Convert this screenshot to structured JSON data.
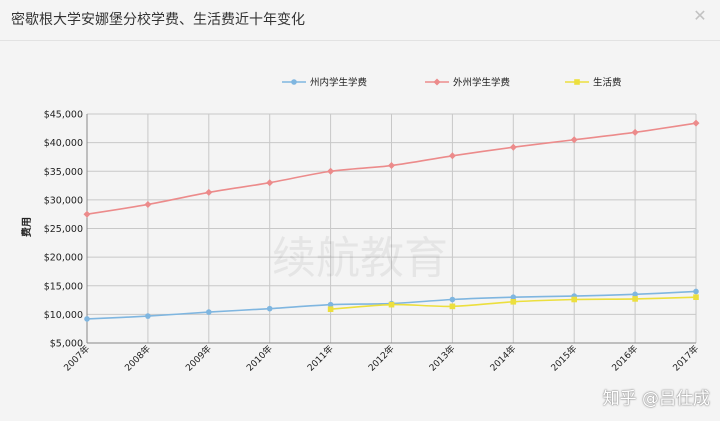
{
  "window": {
    "title": "密歇根大学安娜堡分校学费、生活费近十年变化",
    "close_glyph": "✕"
  },
  "watermark": {
    "center_text": "续航教育",
    "corner_text": "知乎 @吕仕成"
  },
  "colors": {
    "background": "#f4f4f4",
    "grid": "#c8c8c8",
    "in_state": "#7fb6e0",
    "out_of_state": "#ec8b8b",
    "living": "#ecdf3e"
  },
  "chart_data": {
    "type": "line",
    "title": "",
    "xlabel": "",
    "ylabel": "费用",
    "ylim": [
      5000,
      45000
    ],
    "y_ticks": [
      "$5,000",
      "$10,000",
      "$15,000",
      "$20,000",
      "$25,000",
      "$30,000",
      "$35,000",
      "$40,000",
      "$45,000"
    ],
    "categories": [
      "2007年",
      "2008年",
      "2009年",
      "2010年",
      "2011年",
      "2012年",
      "2013年",
      "2014年",
      "2015年",
      "2016年",
      "2017年"
    ],
    "grid": true,
    "legend_position": "top",
    "series": [
      {
        "name": "州内学生学费",
        "color": "#7fb6e0",
        "marker": "circle",
        "values": [
          9200,
          9700,
          10400,
          11000,
          11700,
          11900,
          12600,
          13000,
          13200,
          13500,
          14000
        ]
      },
      {
        "name": "外州学生学费",
        "color": "#ec8b8b",
        "marker": "diamond",
        "values": [
          27500,
          29200,
          31300,
          33000,
          35000,
          36000,
          37700,
          39200,
          40500,
          41800,
          43400
        ]
      },
      {
        "name": "生活费",
        "color": "#ecdf3e",
        "marker": "square",
        "values": [
          null,
          null,
          null,
          null,
          10900,
          11700,
          11400,
          12200,
          12600,
          12700,
          13000
        ]
      }
    ]
  }
}
